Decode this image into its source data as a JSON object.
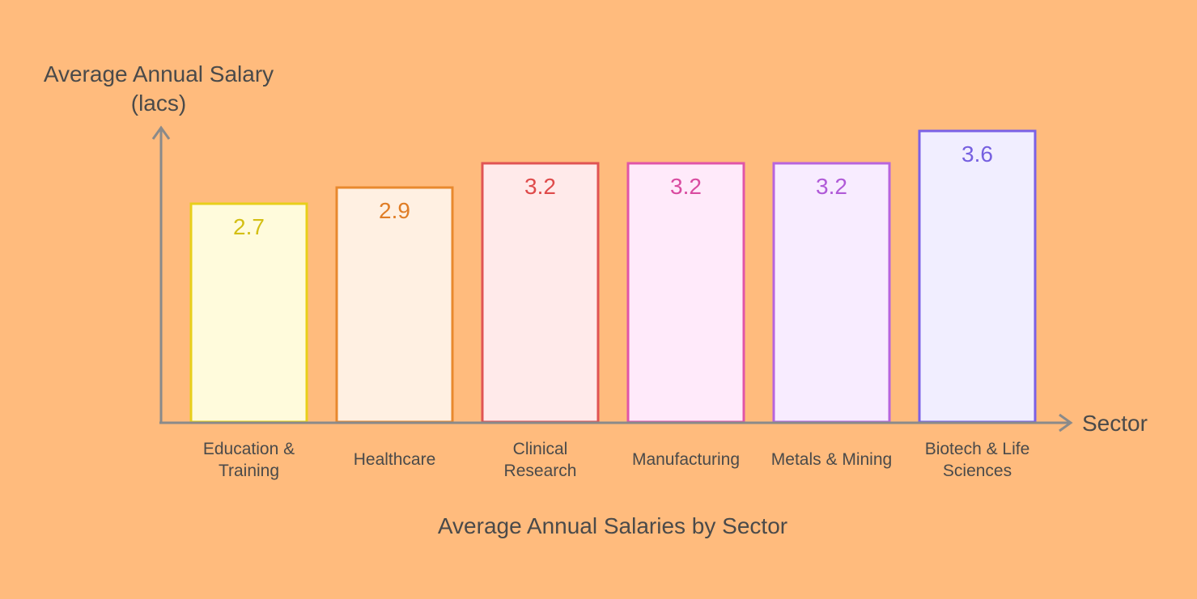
{
  "chart_data": {
    "type": "bar",
    "title": "Average Annual Salaries by Sector",
    "ylabel": [
      "Average Annual Salary",
      "(lacs)"
    ],
    "xlabel": "Sector",
    "categories": [
      [
        "Education &",
        "Training"
      ],
      [
        "Healthcare"
      ],
      [
        "Clinical",
        "Research"
      ],
      [
        "Manufacturing"
      ],
      [
        "Metals & Mining"
      ],
      [
        "Biotech & Life",
        "Sciences"
      ]
    ],
    "values": [
      2.7,
      2.9,
      3.2,
      3.2,
      3.2,
      3.6
    ],
    "value_labels": [
      "2.7",
      "2.9",
      "3.2",
      "3.2",
      "3.2",
      "3.6"
    ],
    "ylim": [
      0,
      3.6
    ],
    "grid": false,
    "legend": "none",
    "colors": {
      "background": "#ffbb7d",
      "axis": "#8a8a8a",
      "bar_strokes": [
        "#e8cf1a",
        "#e8892e",
        "#e05454",
        "#e055a8",
        "#b865dd",
        "#7b61e6"
      ],
      "bar_fills": [
        "#fffbdc",
        "#fff0e2",
        "#ffeaea",
        "#ffeafa",
        "#f8ecff",
        "#f1eeff"
      ],
      "value_text": [
        "#d4bf14",
        "#e07d26",
        "#df4b4b",
        "#d94ba0",
        "#b05ad8",
        "#7660e0"
      ]
    }
  }
}
